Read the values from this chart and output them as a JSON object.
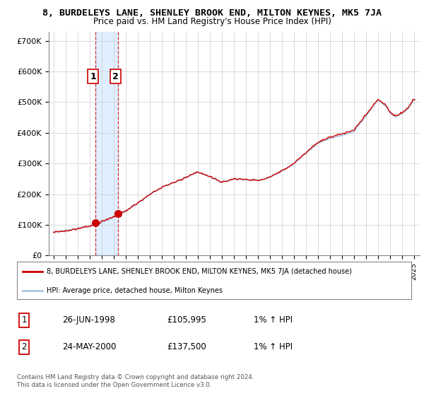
{
  "title1": "8, BURDELEYS LANE, SHENLEY BROOK END, MILTON KEYNES, MK5 7JA",
  "title2": "Price paid vs. HM Land Registry's House Price Index (HPI)",
  "ylabel_ticks": [
    "£0",
    "£100K",
    "£200K",
    "£300K",
    "£400K",
    "£500K",
    "£600K",
    "£700K"
  ],
  "ytick_values": [
    0,
    100000,
    200000,
    300000,
    400000,
    500000,
    600000,
    700000
  ],
  "ylim": [
    0,
    730000
  ],
  "xlim_start": 1994.6,
  "xlim_end": 2025.5,
  "hpi_color": "#aac4e0",
  "price_color": "#cc0000",
  "shade_color": "#ddeeff",
  "sale1_x": 1998.48,
  "sale1_y": 105995,
  "sale2_x": 2000.38,
  "sale2_y": 137500,
  "legend_label1": "8, BURDELEYS LANE, SHENLEY BROOK END, MILTON KEYNES, MK5 7JA (detached house)",
  "legend_label2": "HPI: Average price, detached house, Milton Keynes",
  "table_row1_num": "1",
  "table_row1_date": "26-JUN-1998",
  "table_row1_price": "£105,995",
  "table_row1_hpi": "1% ↑ HPI",
  "table_row2_num": "2",
  "table_row2_date": "24-MAY-2000",
  "table_row2_price": "£137,500",
  "table_row2_hpi": "1% ↑ HPI",
  "footer": "Contains HM Land Registry data © Crown copyright and database right 2024.\nThis data is licensed under the Open Government Licence v3.0."
}
